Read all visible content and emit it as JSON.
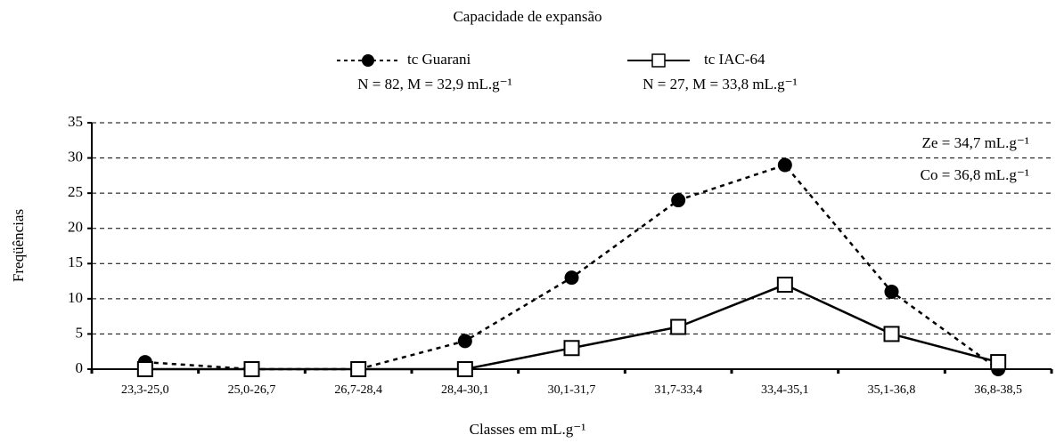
{
  "chart_data": {
    "type": "line",
    "title": "Capacidade de expansão",
    "x_label": "Classes em mL.g⁻¹",
    "y_label": "Freqüências",
    "categories": [
      "23,3-25,0",
      "25,0-26,7",
      "26,7-28,4",
      "28,4-30,1",
      "30,1-31,7",
      "31,7-33,4",
      "33,4-35,1",
      "35,1-36,8",
      "36,8-38,5"
    ],
    "series": [
      {
        "name": "tc Guarani",
        "subtitle": "N = 82, M = 32,9 mL.g⁻¹",
        "color": "#000000",
        "line_style": "dashed",
        "marker": "circle",
        "values": [
          1,
          0,
          0,
          4,
          13,
          24,
          29,
          11,
          0
        ]
      },
      {
        "name": "tc IAC-64",
        "subtitle": "N = 27, M = 33,8 mL.g⁻¹",
        "color": "#000000",
        "line_style": "solid",
        "marker": "square",
        "values": [
          0,
          0,
          0,
          0,
          3,
          6,
          12,
          5,
          1
        ]
      }
    ],
    "annotations": [
      "Ze = 34,7 mL.g⁻¹",
      "Co = 36,8 mL.g⁻¹"
    ],
    "ylim": [
      0,
      35
    ],
    "yticks": [
      0,
      5,
      10,
      15,
      20,
      25,
      30,
      35
    ],
    "grid": true
  }
}
